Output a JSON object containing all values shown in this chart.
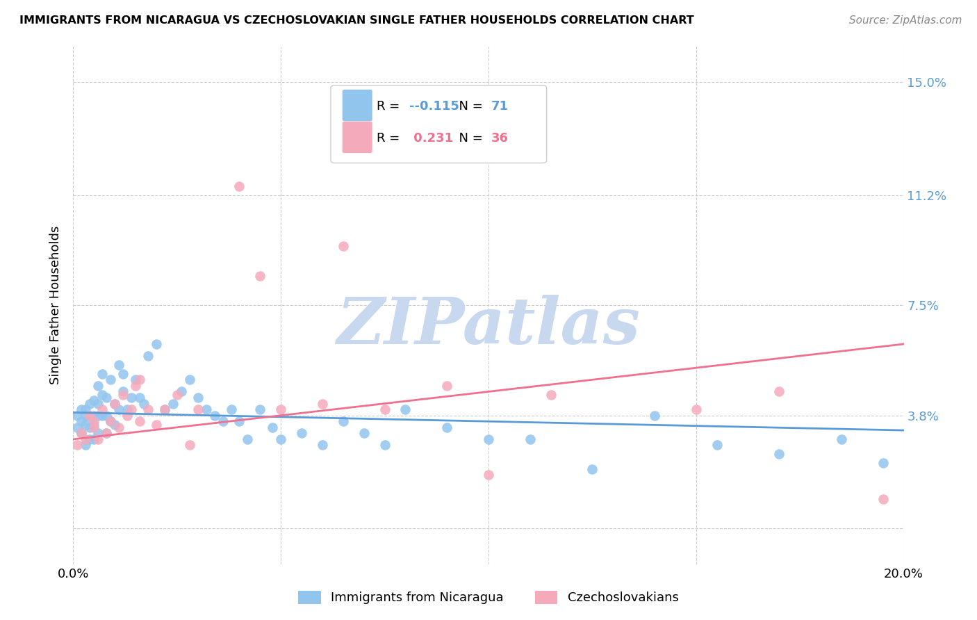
{
  "title": "IMMIGRANTS FROM NICARAGUA VS CZECHOSLOVAKIAN SINGLE FATHER HOUSEHOLDS CORRELATION CHART",
  "source": "Source: ZipAtlas.com",
  "ylabel": "Single Father Households",
  "y_ticks": [
    0.0,
    0.038,
    0.075,
    0.112,
    0.15
  ],
  "y_tick_labels": [
    "",
    "3.8%",
    "7.5%",
    "11.2%",
    "15.0%"
  ],
  "x_ticks": [
    0.0,
    0.05,
    0.1,
    0.15,
    0.2
  ],
  "xlim": [
    0.0,
    0.2
  ],
  "ylim": [
    -0.012,
    0.162
  ],
  "color_blue": "#92C5EE",
  "color_pink": "#F5AABB",
  "color_blue_line": "#5B9BD5",
  "color_pink_line": "#F07090",
  "color_right_axis": "#5B9BD5",
  "watermark_color": "#C8D8EE",
  "blue_scatter_x": [
    0.001,
    0.001,
    0.002,
    0.002,
    0.002,
    0.003,
    0.003,
    0.003,
    0.003,
    0.004,
    0.004,
    0.004,
    0.004,
    0.005,
    0.005,
    0.005,
    0.005,
    0.006,
    0.006,
    0.006,
    0.006,
    0.007,
    0.007,
    0.007,
    0.008,
    0.008,
    0.008,
    0.009,
    0.009,
    0.01,
    0.01,
    0.011,
    0.011,
    0.012,
    0.012,
    0.013,
    0.014,
    0.015,
    0.016,
    0.017,
    0.018,
    0.02,
    0.022,
    0.024,
    0.026,
    0.028,
    0.03,
    0.032,
    0.034,
    0.036,
    0.038,
    0.04,
    0.042,
    0.045,
    0.048,
    0.05,
    0.055,
    0.06,
    0.065,
    0.07,
    0.075,
    0.08,
    0.09,
    0.1,
    0.11,
    0.125,
    0.14,
    0.155,
    0.17,
    0.185,
    0.195
  ],
  "blue_scatter_y": [
    0.034,
    0.038,
    0.036,
    0.04,
    0.032,
    0.035,
    0.038,
    0.04,
    0.028,
    0.042,
    0.038,
    0.034,
    0.03,
    0.043,
    0.038,
    0.035,
    0.03,
    0.048,
    0.042,
    0.038,
    0.032,
    0.052,
    0.045,
    0.038,
    0.044,
    0.038,
    0.032,
    0.05,
    0.036,
    0.042,
    0.035,
    0.055,
    0.04,
    0.052,
    0.046,
    0.04,
    0.044,
    0.05,
    0.044,
    0.042,
    0.058,
    0.062,
    0.04,
    0.042,
    0.046,
    0.05,
    0.044,
    0.04,
    0.038,
    0.036,
    0.04,
    0.036,
    0.03,
    0.04,
    0.034,
    0.03,
    0.032,
    0.028,
    0.036,
    0.032,
    0.028,
    0.04,
    0.034,
    0.03,
    0.03,
    0.02,
    0.038,
    0.028,
    0.025,
    0.03,
    0.022
  ],
  "pink_scatter_x": [
    0.001,
    0.002,
    0.003,
    0.004,
    0.005,
    0.005,
    0.006,
    0.007,
    0.008,
    0.009,
    0.01,
    0.011,
    0.012,
    0.013,
    0.014,
    0.015,
    0.016,
    0.016,
    0.018,
    0.02,
    0.022,
    0.025,
    0.028,
    0.03,
    0.04,
    0.045,
    0.05,
    0.06,
    0.065,
    0.075,
    0.09,
    0.1,
    0.115,
    0.15,
    0.17,
    0.195
  ],
  "pink_scatter_y": [
    0.028,
    0.032,
    0.03,
    0.038,
    0.034,
    0.036,
    0.03,
    0.04,
    0.032,
    0.036,
    0.042,
    0.034,
    0.045,
    0.038,
    0.04,
    0.048,
    0.05,
    0.036,
    0.04,
    0.035,
    0.04,
    0.045,
    0.028,
    0.04,
    0.115,
    0.085,
    0.04,
    0.042,
    0.095,
    0.04,
    0.048,
    0.018,
    0.045,
    0.04,
    0.046,
    0.01
  ],
  "blue_line_x": [
    0.0,
    0.2
  ],
  "blue_line_y": [
    0.039,
    0.033
  ],
  "pink_line_x": [
    0.0,
    0.2
  ],
  "pink_line_y": [
    0.03,
    0.062
  ],
  "legend_blue_r": "-0.115",
  "legend_blue_n": "71",
  "legend_pink_r": "0.231",
  "legend_pink_n": "36"
}
